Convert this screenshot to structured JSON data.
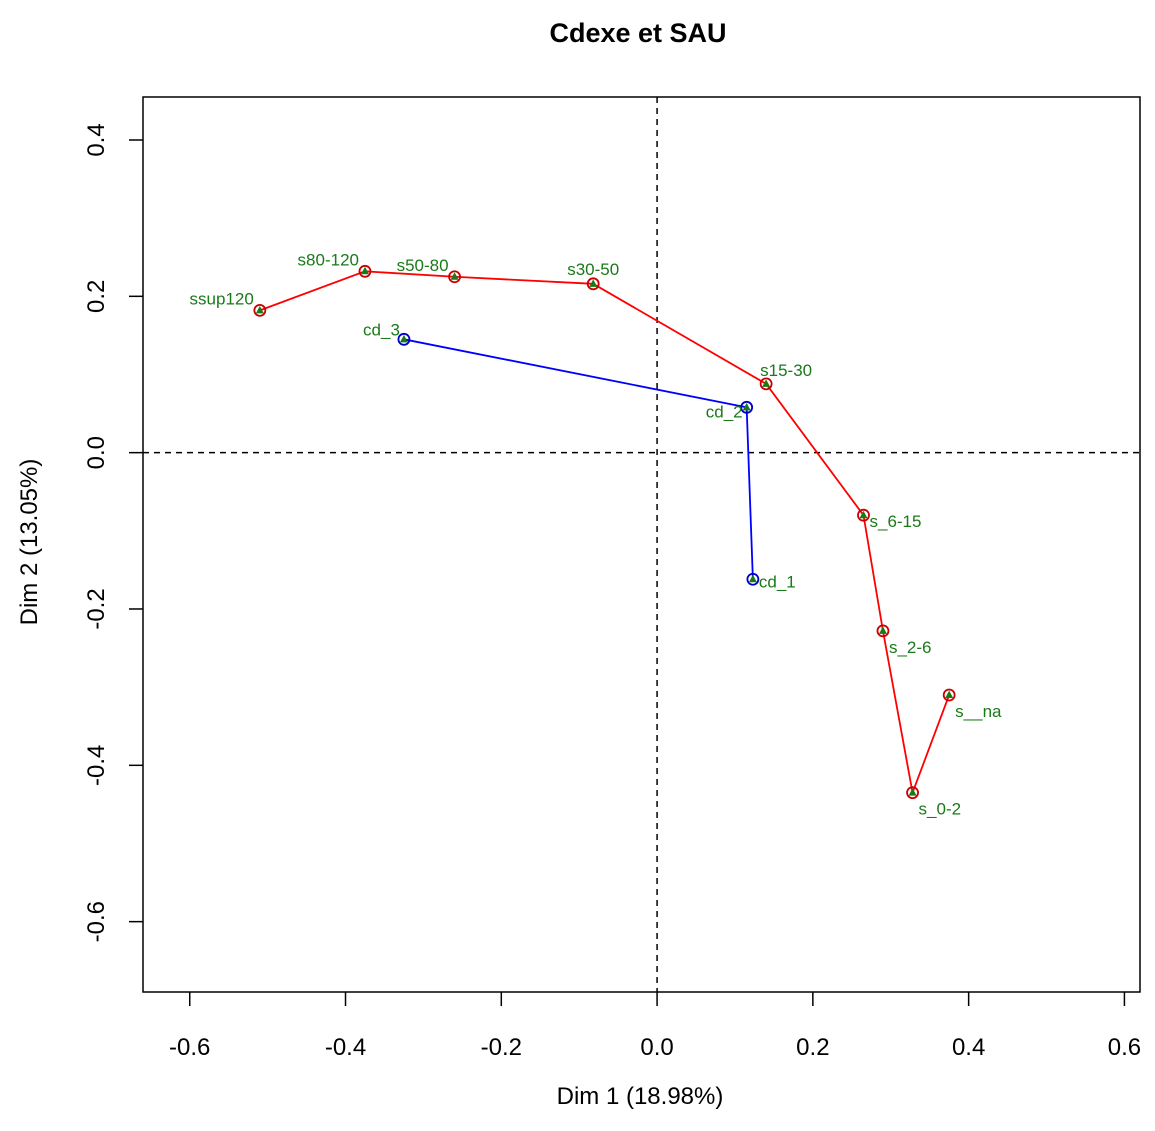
{
  "chart_data": {
    "type": "scatter",
    "title": "Cdexe et SAU",
    "xlabel": "Dim 1 (18.98%)",
    "ylabel": "Dim 2 (13.05%)",
    "xlim": [
      -0.66,
      0.62
    ],
    "ylim": [
      -0.69,
      0.455
    ],
    "xticks": [
      -0.6,
      -0.4,
      -0.2,
      0.0,
      0.2,
      0.4,
      0.6
    ],
    "xtick_labels": [
      "-0.6",
      "-0.4",
      "-0.2",
      "0.0",
      "0.2",
      "0.4",
      "0.6"
    ],
    "yticks": [
      -0.6,
      -0.4,
      -0.2,
      0.0,
      0.2,
      0.4
    ],
    "ytick_labels": [
      "-0.6",
      "-0.4",
      "-0.2",
      "0.0",
      "0.2",
      "0.4"
    ],
    "reference_lines": {
      "x": 0,
      "y": 0,
      "style": "dashed"
    },
    "grid": false,
    "label_color": "#1a7a1a",
    "series": [
      {
        "line_color": "#ff0000",
        "marker_color": "#cc0000",
        "points": [
          {
            "label": "ssup120",
            "x": -0.51,
            "y": 0.182,
            "anchor": "end",
            "dx": -6,
            "dy": -6
          },
          {
            "label": "s80-120",
            "x": -0.375,
            "y": 0.232,
            "anchor": "end",
            "dx": -6,
            "dy": -6
          },
          {
            "label": "s50-80",
            "x": -0.26,
            "y": 0.225,
            "anchor": "end",
            "dx": -6,
            "dy": -6
          },
          {
            "label": "s30-50",
            "x": -0.082,
            "y": 0.216,
            "anchor": "middle",
            "dx": 0,
            "dy": -9
          },
          {
            "label": "s15-30",
            "x": 0.14,
            "y": 0.088,
            "anchor": "start",
            "dx": -6,
            "dy": -8
          },
          {
            "label": "s_6-15",
            "x": 0.265,
            "y": -0.08,
            "anchor": "start",
            "dx": 6,
            "dy": 12
          },
          {
            "label": "s_2-6",
            "x": 0.29,
            "y": -0.228,
            "anchor": "start",
            "dx": 6,
            "dy": 22
          },
          {
            "label": "s_0-2",
            "x": 0.328,
            "y": -0.435,
            "anchor": "start",
            "dx": 6,
            "dy": 22
          },
          {
            "label": "s__na",
            "x": 0.375,
            "y": -0.31,
            "anchor": "start",
            "dx": 6,
            "dy": 22
          }
        ]
      },
      {
        "line_color": "#0000ff",
        "marker_color": "#0000cc",
        "points": [
          {
            "label": "cd_3",
            "x": -0.325,
            "y": 0.145,
            "anchor": "end",
            "dx": -4,
            "dy": -4
          },
          {
            "label": "cd_2",
            "x": 0.115,
            "y": 0.058,
            "anchor": "end",
            "dx": -4,
            "dy": 10
          },
          {
            "label": "cd_1",
            "x": 0.123,
            "y": -0.162,
            "anchor": "start",
            "dx": 6,
            "dy": 8
          }
        ]
      }
    ]
  }
}
